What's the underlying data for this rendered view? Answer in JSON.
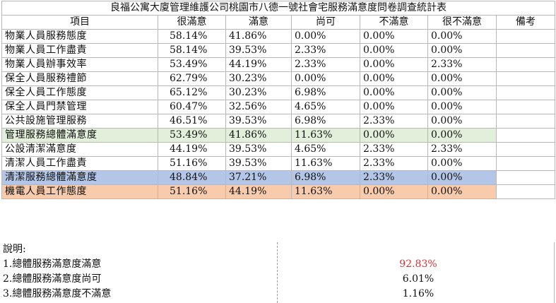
{
  "title": "良福公寓大廈管理維護公司桃園市八德一號社會宅服務滿意度問卷調查統計表",
  "headers": [
    "項目",
    "很滿意",
    "滿意",
    "尚可",
    "不滿意",
    "很不滿意",
    "備考"
  ],
  "rows": [
    {
      "name": "物業人員服務態度",
      "values": [
        "58.14%",
        "41.86%",
        "0.00%",
        "0.00%",
        "0.00%"
      ]
    },
    {
      "name": "物業人員工作盡責",
      "values": [
        "58.14%",
        "39.53%",
        "2.33%",
        "0.00%",
        "0.00%"
      ]
    },
    {
      "name": "物業人員辦事效率",
      "values": [
        "53.49%",
        "44.19%",
        "2.33%",
        "0.00%",
        "2.33%"
      ]
    },
    {
      "name": "保全人員服務禮節",
      "values": [
        "62.79%",
        "30.23%",
        "0.00%",
        "0.00%",
        "0.00%"
      ]
    },
    {
      "name": "保全人員工作態度",
      "values": [
        "65.12%",
        "30.23%",
        "6.98%",
        "0.00%",
        "0.00%"
      ]
    },
    {
      "name": "保全人員門禁管理",
      "values": [
        "60.47%",
        "32.56%",
        "4.65%",
        "0.00%",
        "0.00%"
      ]
    },
    {
      "name": "公共設施管理服務",
      "values": [
        "46.51%",
        "39.53%",
        "6.98%",
        "2.33%",
        "0.00%"
      ]
    },
    {
      "name": "管理服務總體滿意度",
      "values": [
        "53.49%",
        "41.86%",
        "11.63%",
        "0.00%",
        "0.00%"
      ]
    },
    {
      "name": "公設清潔滿意度",
      "values": [
        "44.19%",
        "39.53%",
        "4.65%",
        "2.33%",
        "2.33%"
      ]
    },
    {
      "name": "清潔人員工作盡責",
      "values": [
        "51.16%",
        "39.53%",
        "11.63%",
        "2.33%",
        "0.00%"
      ]
    },
    {
      "name": "清潔服務總體滿意度",
      "values": [
        "48.84%",
        "37.21%",
        "6.98%",
        "2.33%",
        "0.00%"
      ]
    },
    {
      "name": "機電人員工作態度",
      "values": [
        "51.16%",
        "44.19%",
        "11.63%",
        "0.00%",
        "0.00%"
      ]
    }
  ],
  "row_highlights": [
    "",
    "",
    "",
    "",
    "dash",
    "",
    "",
    "green",
    "",
    "",
    "blue",
    "orange"
  ],
  "highlight_colors": {
    "green": "#e2efda",
    "blue": "#b4c6e7",
    "orange": "#f8cbad",
    "emphasis_text": "#e03030"
  },
  "notes": {
    "heading": "說明:",
    "items": [
      {
        "label": "1.總體服務滿意度滿意",
        "value": "92.83%"
      },
      {
        "label": "2.總體服務滿意度尚可",
        "value": "6.01%"
      },
      {
        "label": "3.總體服務滿意度不滿意",
        "value": "1.16%"
      }
    ]
  }
}
